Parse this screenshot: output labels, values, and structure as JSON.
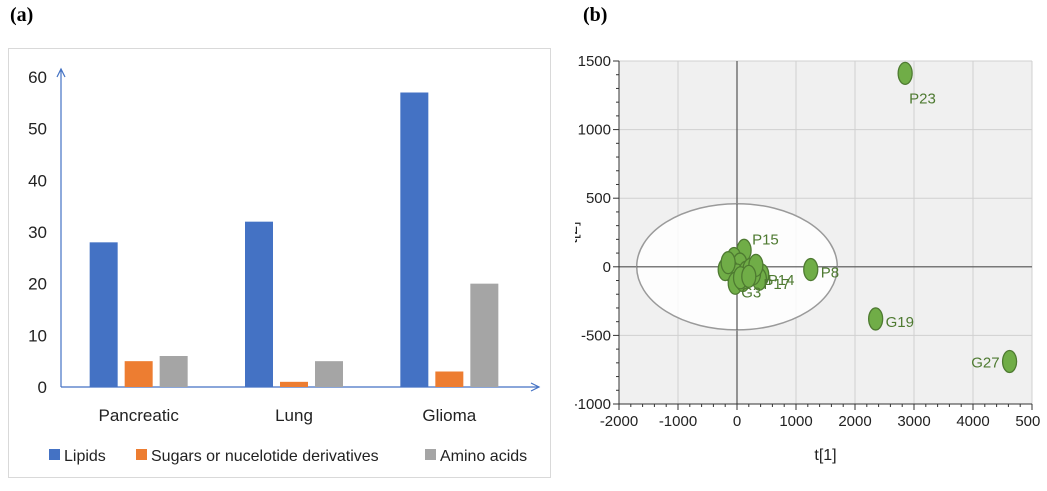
{
  "panel_labels": {
    "a": "(a)",
    "b": "(b)"
  },
  "colors": {
    "lipids": "#4472c4",
    "sugars": "#ed7d31",
    "amino": "#a5a5a5",
    "points": "#70ad47",
    "point_stroke": "#4e7a31",
    "label": "#4e7a31",
    "plot_bg": "#f0f0f0",
    "grid": "#d0d0d0"
  },
  "chart_data": [
    {
      "type": "bar",
      "categories": [
        "Pancreatic",
        "Lung",
        "Glioma"
      ],
      "series": [
        {
          "name": "Lipids",
          "values": [
            28,
            32,
            57
          ]
        },
        {
          "name": "Sugars or nucelotide derivatives",
          "values": [
            5,
            1,
            3
          ]
        },
        {
          "name": "Amino acids",
          "values": [
            6,
            5,
            20
          ]
        }
      ],
      "yticks": [
        "0",
        "10",
        "20",
        "30",
        "40",
        "50",
        "60"
      ],
      "ylim": [
        0,
        60
      ],
      "legend": "bottom",
      "grid": false
    },
    {
      "type": "scatter",
      "xlabel": "t[1]",
      "ylabel": "t[2]",
      "xlim": [
        -2000,
        5000
      ],
      "ylim": [
        -1000,
        1500
      ],
      "xticks": [
        "-2000",
        "-1000",
        "0",
        "1000",
        "2000",
        "3000",
        "4000",
        "5000"
      ],
      "yticks": [
        "1500",
        "1000",
        "500",
        "0",
        "-500",
        "-1000"
      ],
      "grid": true,
      "ellipse": {
        "cx": 0,
        "cy": 0,
        "rx": 1700,
        "ry": 460
      },
      "points": [
        {
          "x": 2850,
          "y": 1410,
          "label": "P23"
        },
        {
          "x": 1250,
          "y": -20,
          "label": "P8"
        },
        {
          "x": 2350,
          "y": -380,
          "label": "G19"
        },
        {
          "x": 4620,
          "y": -690,
          "label": "G27"
        },
        {
          "x": 120,
          "y": 120,
          "label": "P15"
        },
        {
          "x": 420,
          "y": -60,
          "label": "P14"
        },
        {
          "x": 380,
          "y": -90,
          "label": "P17"
        },
        {
          "x": -50,
          "y": 60,
          "label": ""
        },
        {
          "x": 50,
          "y": 20,
          "label": ""
        },
        {
          "x": -100,
          "y": -30,
          "label": ""
        },
        {
          "x": 0,
          "y": -60,
          "label": ""
        },
        {
          "x": 150,
          "y": -40,
          "label": ""
        },
        {
          "x": 220,
          "y": -20,
          "label": ""
        },
        {
          "x": 280,
          "y": -50,
          "label": ""
        },
        {
          "x": -200,
          "y": -20,
          "label": ""
        },
        {
          "x": -30,
          "y": -120,
          "label": "G3"
        },
        {
          "x": 100,
          "y": -100,
          "label": ""
        },
        {
          "x": 320,
          "y": 10,
          "label": ""
        },
        {
          "x": -150,
          "y": 30,
          "label": ""
        },
        {
          "x": 60,
          "y": -80,
          "label": ""
        },
        {
          "x": 200,
          "y": -70,
          "label": ""
        }
      ]
    }
  ]
}
